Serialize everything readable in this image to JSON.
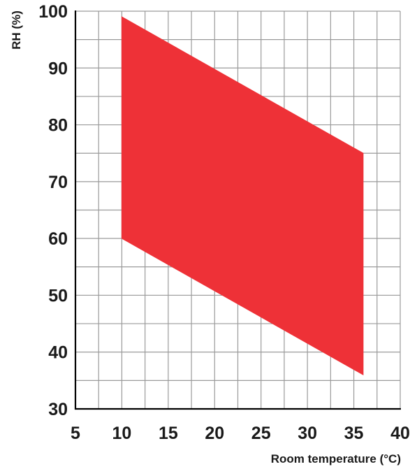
{
  "chart_data": {
    "type": "area",
    "xlabel": "Room temperature (°C)",
    "ylabel": "RH (%)",
    "xlim": [
      5,
      40
    ],
    "ylim": [
      30,
      100
    ],
    "x_ticks": [
      5,
      10,
      15,
      20,
      25,
      30,
      35,
      40
    ],
    "y_ticks": [
      30,
      40,
      50,
      60,
      70,
      80,
      90,
      100
    ],
    "x_minor_step": 2.5,
    "y_minor_step": 5,
    "grid": true,
    "region": {
      "upper_boundary": [
        [
          10,
          99
        ],
        [
          36,
          75
        ]
      ],
      "lower_boundary": [
        [
          10,
          60
        ],
        [
          36,
          36
        ]
      ],
      "color": "#ee3137"
    },
    "colors": {
      "grid": "#9a9a9a",
      "axis": "#000000",
      "fill": "#ee3137"
    }
  }
}
